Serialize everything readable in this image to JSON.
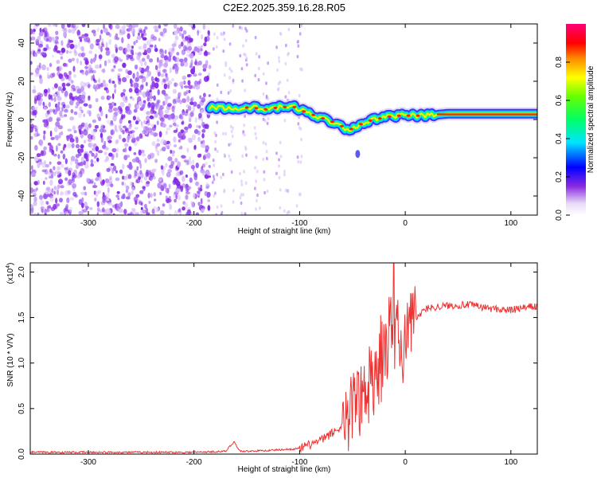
{
  "title": "C2E2.2025.359.16.28.R05",
  "colors": {
    "snr_line": "#ee3333",
    "noise": "#8a2be2",
    "frame": "#000000"
  },
  "chart_data": [
    {
      "type": "heatmap",
      "name": "spectrogram",
      "xlabel": "Height of straight line (km)",
      "ylabel": "Frequency (Hz)",
      "xlim": [
        -355,
        125
      ],
      "ylim": [
        -50,
        50
      ],
      "xticks": [
        -300,
        -200,
        -100,
        0,
        100
      ],
      "xtick_labels": [
        "-300",
        "-200",
        "-100",
        "0",
        "100"
      ],
      "yticks": [
        40,
        20,
        0,
        -20,
        -40
      ],
      "ytick_labels": [
        "40",
        "20",
        "0",
        "-20",
        "-40"
      ],
      "colorbar": {
        "label": "Normalized spectral amplitude",
        "range": [
          0,
          1
        ],
        "ticks": [
          0.0,
          0.2,
          0.4,
          0.6,
          0.8
        ],
        "tick_labels": [
          "0.0",
          "0.2",
          "0.4",
          "0.6",
          "0.8"
        ]
      },
      "noise_region": {
        "x_from": -355,
        "x_to": -185
      },
      "ridge": {
        "x": [
          -185,
          -175,
          -165,
          -155,
          -145,
          -135,
          -125,
          -115,
          -105,
          -95,
          -85,
          -75,
          -65,
          -55,
          -50,
          -45,
          -40,
          -30,
          -20,
          -10,
          0,
          10,
          20,
          30,
          40,
          60,
          80,
          100,
          125
        ],
        "freq": [
          6,
          6.5,
          5.5,
          6,
          6.5,
          5,
          6,
          6.5,
          6.5,
          4,
          2,
          0,
          -2,
          -5,
          -5,
          -3,
          -2,
          0,
          1,
          2,
          2,
          2,
          2,
          2.5,
          3,
          3,
          3,
          3,
          3
        ]
      }
    },
    {
      "type": "line",
      "name": "snr",
      "xlabel": "Height of straight line (km)",
      "ylabel": "SNR (10 * V/V)",
      "multiplier_label": "(x10",
      "multiplier_exponent": "4",
      "multiplier_close": ")",
      "xlim": [
        -355,
        125
      ],
      "ylim": [
        0,
        2.1
      ],
      "xticks": [
        -300,
        -200,
        -100,
        0,
        100
      ],
      "xtick_labels": [
        "-300",
        "-200",
        "-100",
        "0",
        "100"
      ],
      "yticks": [
        0.0,
        0.5,
        1.0,
        1.5,
        2.0
      ],
      "ytick_labels": [
        "0.0",
        "0.5",
        "1.0",
        "1.5",
        "2.0"
      ],
      "series": [
        {
          "name": "SNR",
          "x": [
            -355,
            -300,
            -200,
            -170,
            -162,
            -158,
            -155,
            -130,
            -100,
            -80,
            -60,
            -50,
            -40,
            -30,
            -20,
            -15,
            -10,
            -5,
            0,
            5,
            10,
            20,
            30,
            40,
            60,
            80,
            100,
            120,
            125
          ],
          "values": [
            0.02,
            0.02,
            0.02,
            0.03,
            0.14,
            0.05,
            0.03,
            0.04,
            0.06,
            0.15,
            0.3,
            0.5,
            0.7,
            0.9,
            1.1,
            1.3,
            1.2,
            1.2,
            1.2,
            1.35,
            1.5,
            1.6,
            1.62,
            1.63,
            1.64,
            1.6,
            1.58,
            1.62,
            1.62
          ],
          "peak": {
            "x": -11,
            "value": 2.1
          }
        }
      ]
    }
  ]
}
